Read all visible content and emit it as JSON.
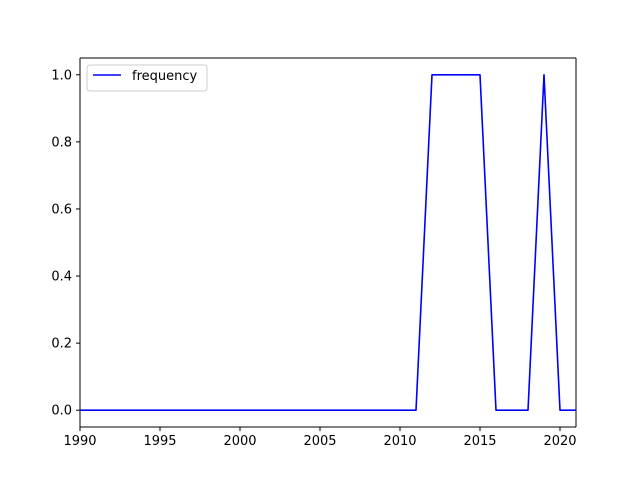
{
  "chart_data": {
    "type": "line",
    "title": "",
    "xlabel": "",
    "ylabel": "",
    "xlim": [
      1990,
      2021
    ],
    "ylim": [
      -0.05,
      1.05
    ],
    "xticks": [
      1990,
      1995,
      2000,
      2005,
      2010,
      2015,
      2020
    ],
    "yticks": [
      0.0,
      0.2,
      0.4,
      0.6,
      0.8,
      1.0
    ],
    "xtick_labels": [
      "1990",
      "1995",
      "2000",
      "2005",
      "2010",
      "2015",
      "2020"
    ],
    "ytick_labels": [
      "0.0",
      "0.2",
      "0.4",
      "0.6",
      "0.8",
      "1.0"
    ],
    "grid": false,
    "legend": {
      "position": "top-left"
    },
    "series": [
      {
        "name": "frequency",
        "color": "#0000ff",
        "x": [
          1990,
          1991,
          1992,
          1993,
          1994,
          1995,
          1996,
          1997,
          1998,
          1999,
          2000,
          2001,
          2002,
          2003,
          2004,
          2005,
          2006,
          2007,
          2008,
          2009,
          2010,
          2011,
          2012,
          2013,
          2014,
          2015,
          2016,
          2017,
          2018,
          2019,
          2020,
          2021
        ],
        "y": [
          0,
          0,
          0,
          0,
          0,
          0,
          0,
          0,
          0,
          0,
          0,
          0,
          0,
          0,
          0,
          0,
          0,
          0,
          0,
          0,
          0,
          0,
          1,
          1,
          1,
          1,
          0,
          0,
          0,
          1,
          0,
          0
        ]
      }
    ]
  }
}
